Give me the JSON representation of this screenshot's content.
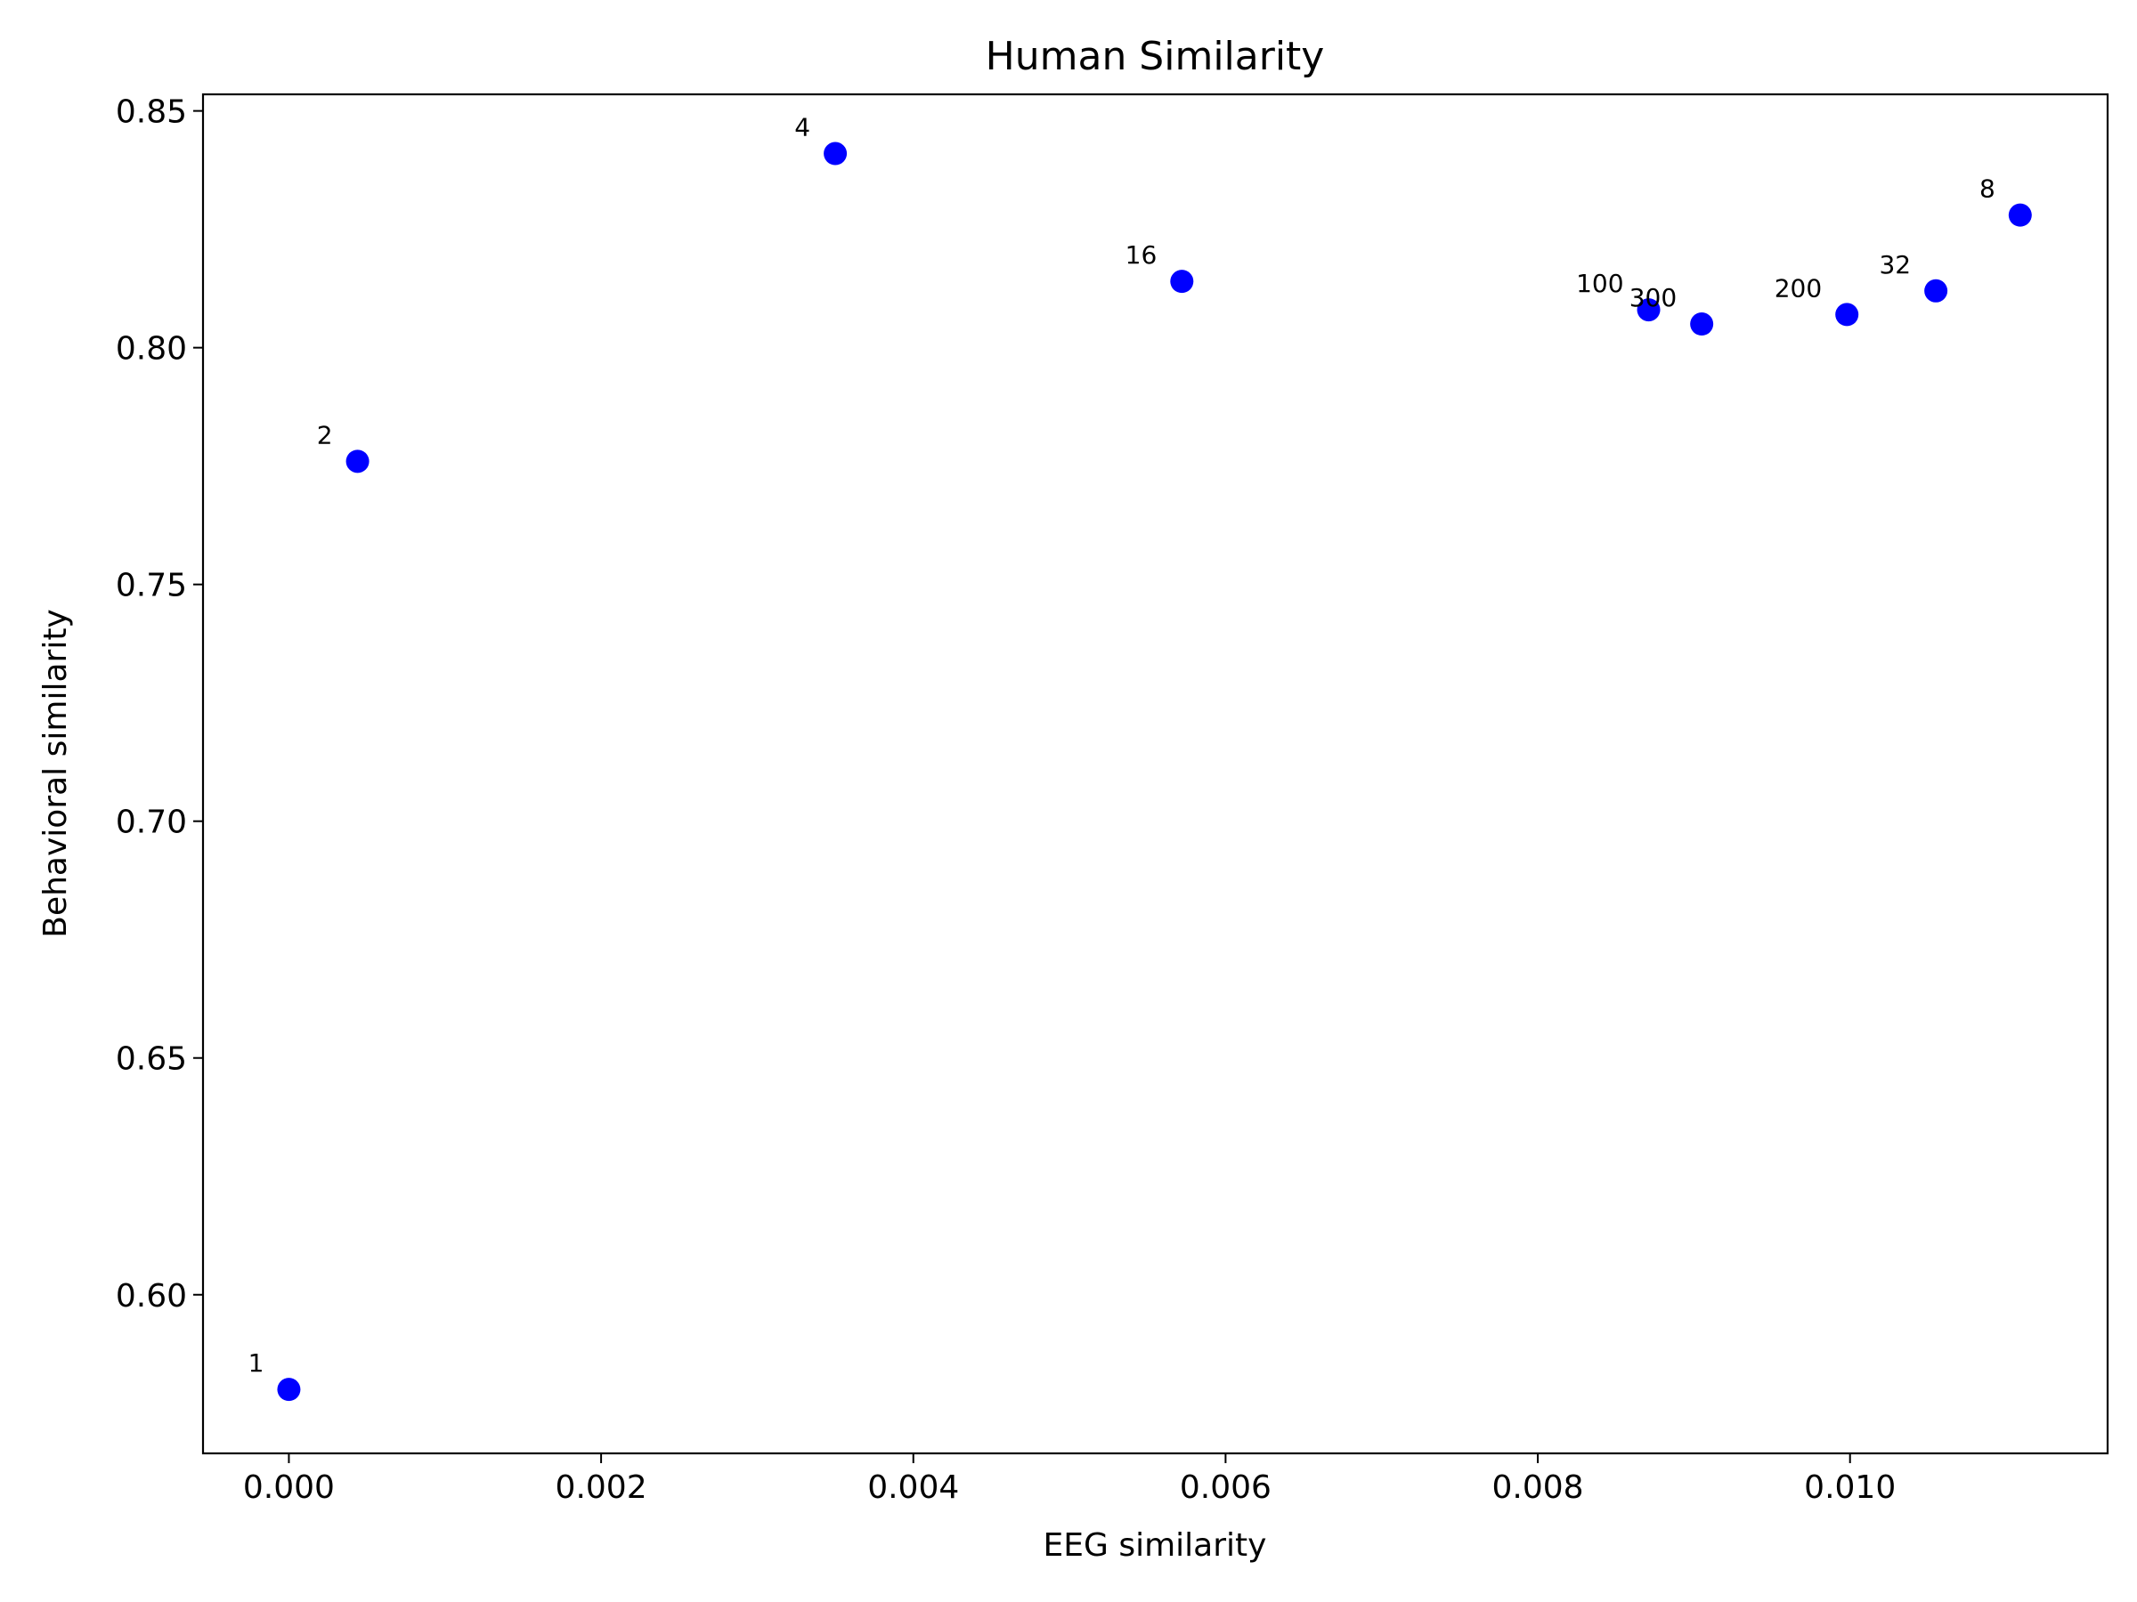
{
  "chart_data": {
    "type": "scatter",
    "title": "Human Similarity",
    "xlabel": "EEG similarity",
    "ylabel": "Behavioral similarity",
    "xlim": [
      -0.00055,
      0.01165
    ],
    "ylim": [
      0.5665,
      0.8535
    ],
    "xticks": [
      0.0,
      0.002,
      0.004,
      0.006,
      0.008,
      0.01
    ],
    "xtick_labels": [
      "0.000",
      "0.002",
      "0.004",
      "0.006",
      "0.008",
      "0.010"
    ],
    "yticks": [
      0.6,
      0.65,
      0.7,
      0.75,
      0.8,
      0.85
    ],
    "ytick_labels": [
      "0.60",
      "0.65",
      "0.70",
      "0.75",
      "0.80",
      "0.85"
    ],
    "grid": false,
    "marker_color": "#0000ff",
    "points": [
      {
        "label": "1",
        "x": 0.0,
        "y": 0.58
      },
      {
        "label": "2",
        "x": 0.00044,
        "y": 0.776
      },
      {
        "label": "4",
        "x": 0.0035,
        "y": 0.841
      },
      {
        "label": "8",
        "x": 0.01109,
        "y": 0.828
      },
      {
        "label": "16",
        "x": 0.00572,
        "y": 0.814
      },
      {
        "label": "32",
        "x": 0.01055,
        "y": 0.812
      },
      {
        "label": "100",
        "x": 0.00871,
        "y": 0.808
      },
      {
        "label": "200",
        "x": 0.00998,
        "y": 0.807
      },
      {
        "label": "300",
        "x": 0.00905,
        "y": 0.805
      }
    ]
  }
}
